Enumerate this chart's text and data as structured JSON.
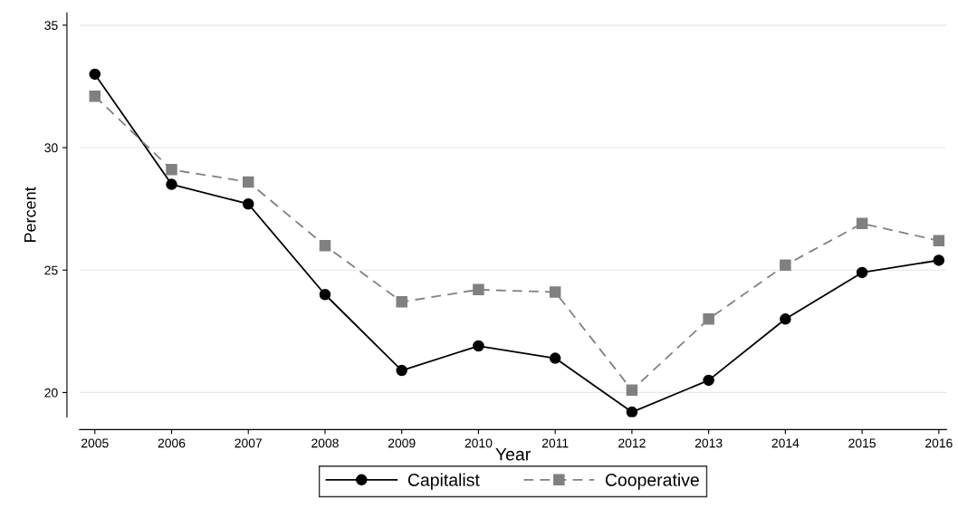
{
  "chart_data": {
    "type": "line",
    "xlabel": "Year",
    "ylabel": "Percent",
    "x": [
      2005,
      2006,
      2007,
      2008,
      2009,
      2010,
      2011,
      2012,
      2013,
      2014,
      2015,
      2016
    ],
    "series": [
      {
        "name": "Capitalist",
        "color": "#000000",
        "marker": "circle",
        "line_style": "solid",
        "values": [
          33.0,
          28.5,
          27.7,
          24.0,
          20.9,
          21.9,
          21.4,
          19.2,
          20.5,
          23.0,
          24.9,
          25.4
        ]
      },
      {
        "name": "Cooperative",
        "color": "#808080",
        "marker": "square",
        "line_style": "dashed",
        "values": [
          32.1,
          29.1,
          28.6,
          26.0,
          23.7,
          24.2,
          24.1,
          20.1,
          23.0,
          25.2,
          26.9,
          26.2
        ]
      }
    ],
    "xlim": [
      2004.8,
      2016.1
    ],
    "ylim": [
      19.0,
      35.5
    ],
    "xticks": [
      2005,
      2006,
      2007,
      2008,
      2009,
      2010,
      2011,
      2012,
      2013,
      2014,
      2015,
      2016
    ],
    "yticks": [
      20,
      25,
      30,
      35
    ],
    "grid": "y",
    "legend": "bottom"
  }
}
